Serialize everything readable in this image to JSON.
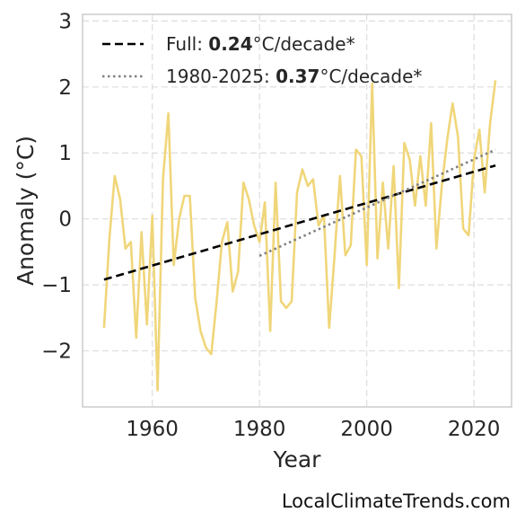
{
  "chart_data": {
    "type": "line",
    "xlabel": "Year",
    "ylabel": "Anomaly (°C)",
    "xlim": [
      1947,
      2027
    ],
    "ylim": [
      -2.85,
      3.1
    ],
    "x_ticks": [
      1960,
      1980,
      2000,
      2020
    ],
    "y_ticks": [
      -2,
      -1,
      0,
      1,
      2,
      3
    ],
    "grid": true,
    "legend_position": "top-left",
    "series": [
      {
        "color": "#f0d67a",
        "style": "solid",
        "x": [
          1951,
          1952,
          1953,
          1954,
          1955,
          1956,
          1957,
          1958,
          1959,
          1960,
          1961,
          1962,
          1963,
          1964,
          1965,
          1966,
          1967,
          1968,
          1969,
          1970,
          1971,
          1972,
          1973,
          1974,
          1975,
          1976,
          1977,
          1978,
          1979,
          1980,
          1981,
          1982,
          1983,
          1984,
          1985,
          1986,
          1987,
          1988,
          1989,
          1990,
          1991,
          1992,
          1993,
          1994,
          1995,
          1996,
          1997,
          1998,
          1999,
          2000,
          2001,
          2002,
          2003,
          2004,
          2005,
          2006,
          2007,
          2008,
          2009,
          2010,
          2011,
          2012,
          2013,
          2014,
          2015,
          2016,
          2017,
          2018,
          2019,
          2020,
          2021,
          2022,
          2023,
          2024
        ],
        "values": [
          -1.65,
          -0.3,
          0.65,
          0.3,
          -0.45,
          -0.35,
          -1.8,
          -0.2,
          -1.6,
          0.05,
          -2.6,
          0.6,
          1.6,
          -0.7,
          0.0,
          0.35,
          0.35,
          -1.2,
          -1.7,
          -1.95,
          -2.05,
          -1.25,
          -0.35,
          -0.05,
          -1.1,
          -0.8,
          0.55,
          0.3,
          -0.1,
          -0.35,
          0.25,
          -1.7,
          0.55,
          -1.25,
          -1.35,
          -1.25,
          0.4,
          0.75,
          0.5,
          0.6,
          -0.1,
          0.05,
          -1.65,
          -0.55,
          0.65,
          -0.55,
          -0.4,
          1.05,
          0.95,
          -0.7,
          2.05,
          -0.6,
          0.55,
          -0.45,
          0.8,
          -1.05,
          1.15,
          0.9,
          0.2,
          0.95,
          0.2,
          1.45,
          -0.45,
          0.5,
          1.2,
          1.75,
          1.25,
          -0.15,
          -0.25,
          0.9,
          1.35,
          0.4,
          1.45,
          2.1
        ]
      },
      {
        "name": "Full:",
        "rate": "0.24",
        "unit": "°C/decade*",
        "color": "#000000",
        "style": "dashed",
        "x": [
          1951,
          2024
        ],
        "values": [
          -0.92,
          0.81
        ]
      },
      {
        "name": "1980-2025:",
        "rate": "0.37",
        "unit": "°C/decade*",
        "color": "#808080",
        "style": "dotted",
        "x": [
          1980,
          2024
        ],
        "values": [
          -0.56,
          1.05
        ]
      }
    ]
  },
  "source": "LocalClimateTrends.com"
}
